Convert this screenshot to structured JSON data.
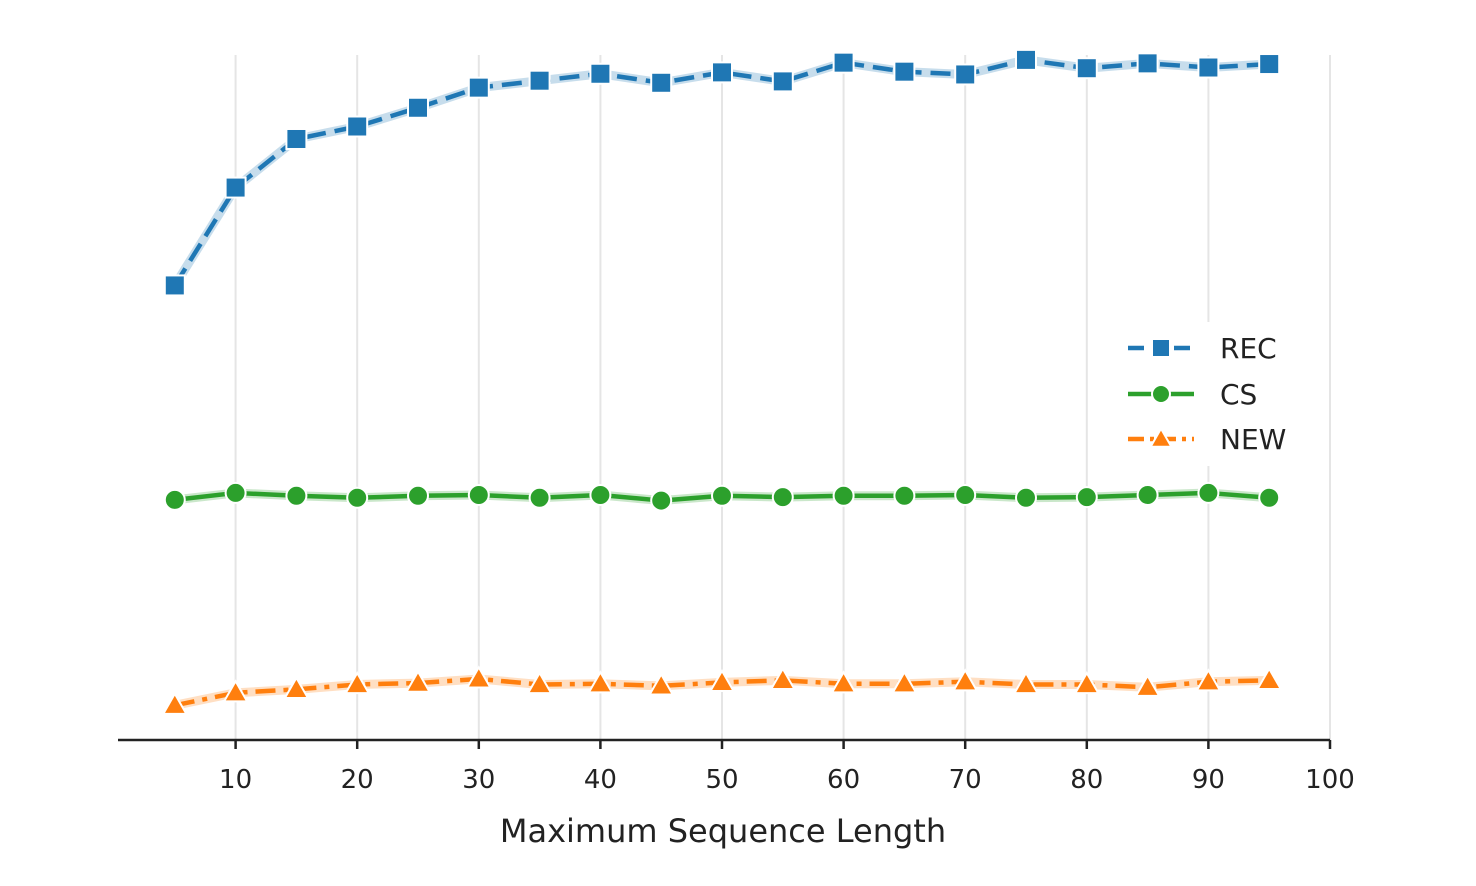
{
  "chart_data": {
    "type": "line",
    "title": "",
    "xlabel": "Maximum Sequence Length",
    "ylabel": "",
    "xlim": [
      0,
      100
    ],
    "ylim": [
      0,
      100
    ],
    "xticks": [
      10,
      20,
      30,
      40,
      50,
      60,
      70,
      80,
      90,
      100
    ],
    "x": [
      5,
      10,
      15,
      20,
      25,
      30,
      35,
      40,
      45,
      50,
      55,
      60,
      65,
      70,
      75,
      80,
      85,
      90,
      95
    ],
    "grid": "vertical",
    "legend_position": "center-right",
    "series": [
      {
        "name": "REC",
        "color": "#1f77b4",
        "marker": "square",
        "linestyle": "dashed",
        "values": [
          65.5,
          79.6,
          86.6,
          88.4,
          91.1,
          94.0,
          95.0,
          96.0,
          94.7,
          96.2,
          94.9,
          97.6,
          96.3,
          95.9,
          98.0,
          96.8,
          97.5,
          96.9,
          97.4
        ]
      },
      {
        "name": "CS",
        "color": "#2ca02c",
        "marker": "circle",
        "linestyle": "solid",
        "values": [
          34.6,
          35.6,
          35.2,
          34.9,
          35.2,
          35.3,
          34.9,
          35.3,
          34.5,
          35.2,
          35.0,
          35.2,
          35.2,
          35.3,
          34.9,
          35.0,
          35.3,
          35.6,
          34.9
        ]
      },
      {
        "name": "NEW",
        "color": "#ff7f0e",
        "marker": "triangle",
        "linestyle": "dashdot",
        "values": [
          5.0,
          6.8,
          7.3,
          8.0,
          8.2,
          8.8,
          8.0,
          8.1,
          7.8,
          8.3,
          8.6,
          8.1,
          8.1,
          8.4,
          8.0,
          8.0,
          7.6,
          8.4,
          8.6
        ]
      }
    ]
  }
}
